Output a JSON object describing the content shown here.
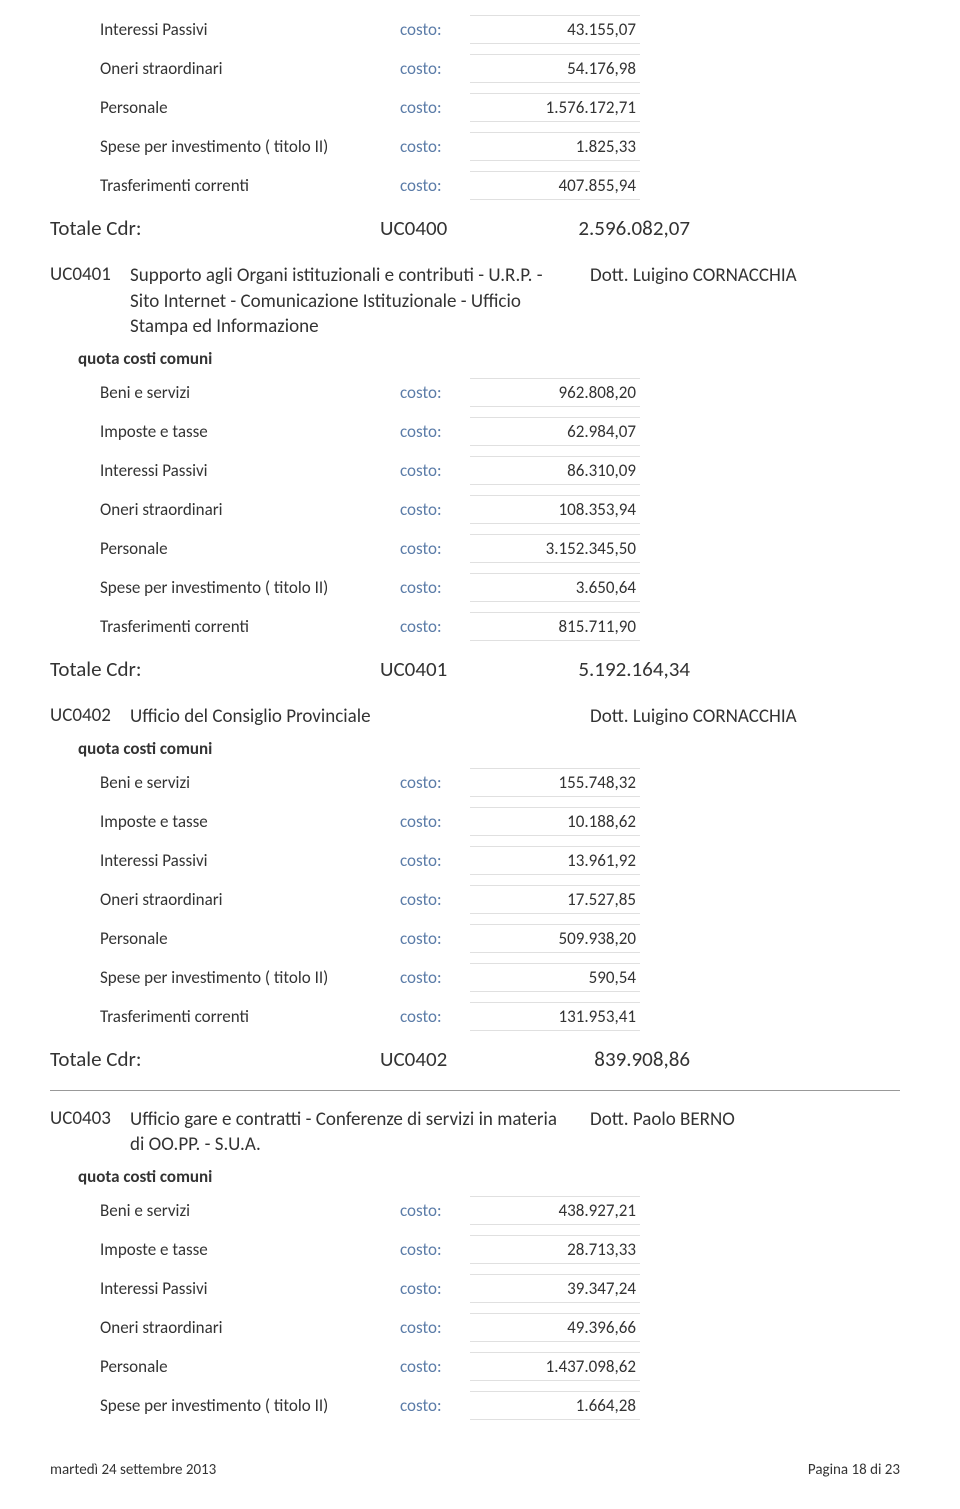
{
  "labels": {
    "costo": "costo:",
    "totale_cdr": "Totale Cdr:",
    "quota_costi_comuni": "quota costi comuni"
  },
  "section0": {
    "rows": [
      {
        "label": "Interessi Passivi",
        "amount": "43.155,07"
      },
      {
        "label": "Oneri straordinari",
        "amount": "54.176,98"
      },
      {
        "label": "Personale",
        "amount": "1.576.172,71"
      },
      {
        "label": "Spese per investimento ( titolo II)",
        "amount": "1.825,33"
      },
      {
        "label": "Trasferimenti correnti",
        "amount": "407.855,94"
      }
    ],
    "total_code": "UC0400",
    "total_amount": "2.596.082,07"
  },
  "section1": {
    "code": "UC0401",
    "title": "Supporto agli Organi istituzionali e contributi - U.R.P.  - Sito Internet - Comunicazione Istituzionale - Ufficio Stampa ed Informazione",
    "responsible": "Dott. Luigino CORNACCHIA",
    "rows": [
      {
        "label": "Beni e servizi",
        "amount": "962.808,20"
      },
      {
        "label": "Imposte e tasse",
        "amount": "62.984,07"
      },
      {
        "label": "Interessi Passivi",
        "amount": "86.310,09"
      },
      {
        "label": "Oneri straordinari",
        "amount": "108.353,94"
      },
      {
        "label": "Personale",
        "amount": "3.152.345,50"
      },
      {
        "label": "Spese per investimento ( titolo II)",
        "amount": "3.650,64"
      },
      {
        "label": "Trasferimenti correnti",
        "amount": "815.711,90"
      }
    ],
    "total_code": "UC0401",
    "total_amount": "5.192.164,34"
  },
  "section2": {
    "code": "UC0402",
    "title": "Ufficio del Consiglio Provinciale",
    "responsible": "Dott. Luigino CORNACCHIA",
    "rows": [
      {
        "label": "Beni e servizi",
        "amount": "155.748,32"
      },
      {
        "label": "Imposte e tasse",
        "amount": "10.188,62"
      },
      {
        "label": "Interessi Passivi",
        "amount": "13.961,92"
      },
      {
        "label": "Oneri straordinari",
        "amount": "17.527,85"
      },
      {
        "label": "Personale",
        "amount": "509.938,20"
      },
      {
        "label": "Spese per investimento ( titolo II)",
        "amount": "590,54"
      },
      {
        "label": "Trasferimenti correnti",
        "amount": "131.953,41"
      }
    ],
    "total_code": "UC0402",
    "total_amount": "839.908,86"
  },
  "section3": {
    "code": "UC0403",
    "title": "Ufficio gare e contratti - Conferenze di servizi in materia di OO.PP. - S.U.A.",
    "responsible": "Dott. Paolo BERNO",
    "rows": [
      {
        "label": "Beni e servizi",
        "amount": "438.927,21"
      },
      {
        "label": "Imposte e tasse",
        "amount": "28.713,33"
      },
      {
        "label": "Interessi Passivi",
        "amount": "39.347,24"
      },
      {
        "label": "Oneri straordinari",
        "amount": "49.396,66"
      },
      {
        "label": "Personale",
        "amount": "1.437.098,62"
      },
      {
        "label": "Spese per investimento ( titolo II)",
        "amount": "1.664,28"
      }
    ]
  },
  "footer": {
    "date": "martedì 24 settembre 2013",
    "page": "Pagina 18 di 23"
  },
  "colors": {
    "costo_color": "#5b7ca8",
    "text_color": "#333333",
    "border_color": "#e0e0e0"
  }
}
